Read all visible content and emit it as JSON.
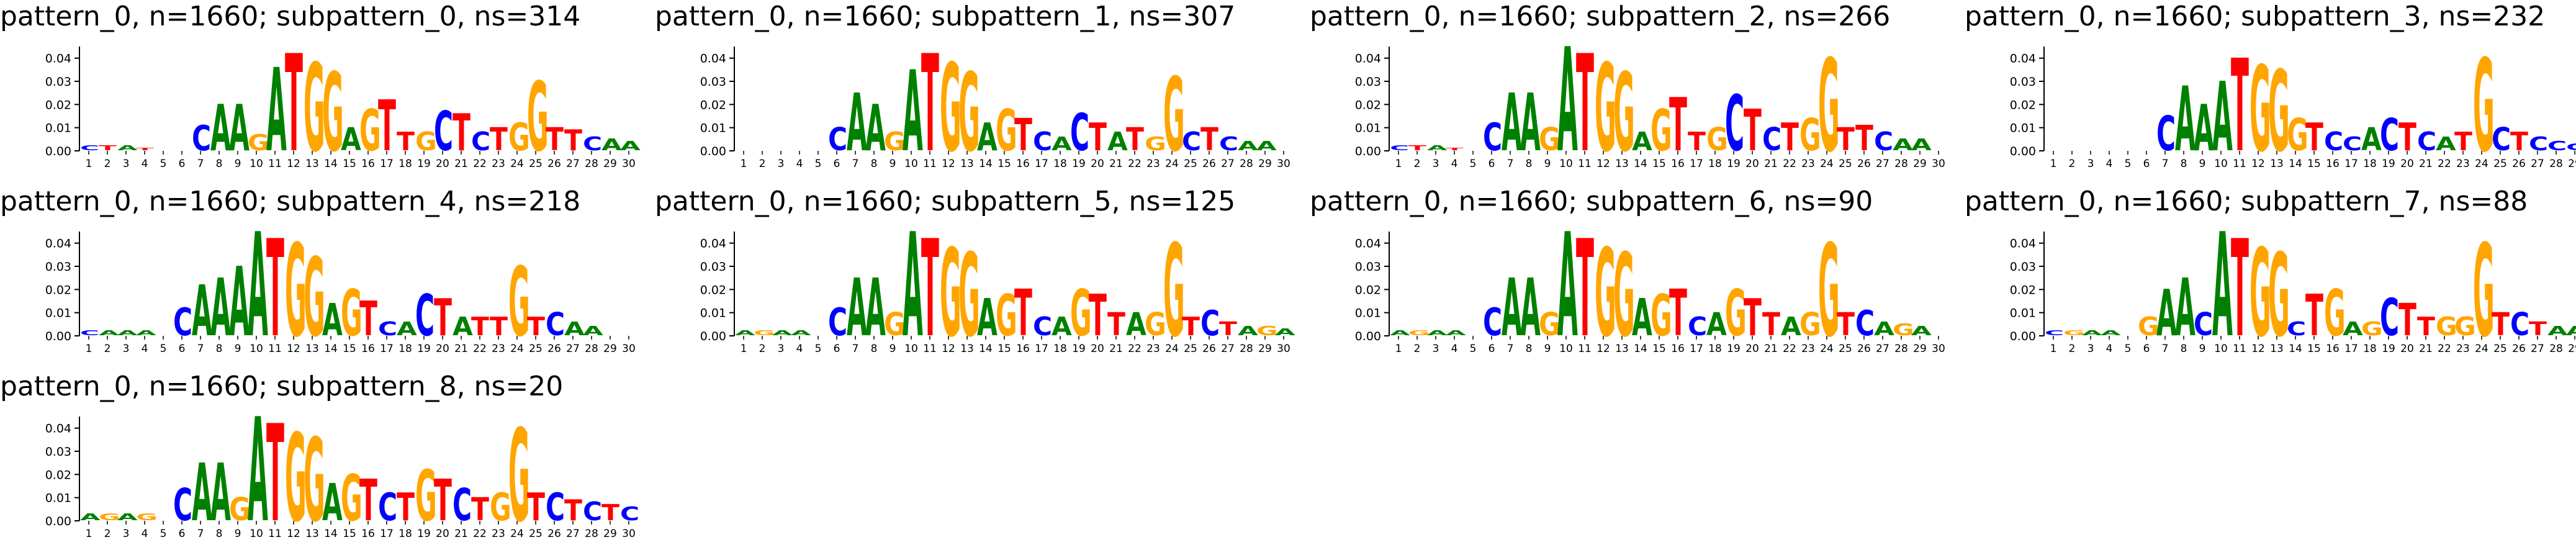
{
  "colors": {
    "A": "#008000",
    "C": "#0000ff",
    "G": "#ffa500",
    "T": "#ff0000"
  },
  "chart_data": [
    {
      "type": "sequence-logo",
      "title": "pattern_0, n=1660; subpattern_0, ns=314",
      "yticks": [
        "0.00",
        "0.01",
        "0.02",
        "0.03",
        "0.04"
      ],
      "ylim": [
        0,
        0.045
      ],
      "positions": 30,
      "xticks": [
        "1",
        "2",
        "3",
        "4",
        "5",
        "6",
        "7",
        "8",
        "9",
        "10",
        "11",
        "12",
        "13",
        "14",
        "15",
        "16",
        "17",
        "18",
        "19",
        "20",
        "21",
        "22",
        "23",
        "24",
        "25",
        "26",
        "27",
        "28",
        "29",
        "30"
      ],
      "consensus": [
        "C",
        "T",
        "A",
        "T",
        "",
        "",
        "C",
        "A",
        "A",
        "G",
        "A",
        "T",
        "G",
        "G",
        "A",
        "G",
        "T",
        "T",
        "G",
        "C",
        "T",
        "C",
        "T",
        "G",
        "G",
        "T",
        "T",
        "C",
        "A",
        "A"
      ],
      "heights": [
        0.002,
        0.002,
        0.002,
        0.001,
        0,
        0,
        0.011,
        0.02,
        0.02,
        0.007,
        0.036,
        0.042,
        0.038,
        0.034,
        0.01,
        0.018,
        0.022,
        0.008,
        0.008,
        0.017,
        0.016,
        0.008,
        0.01,
        0.012,
        0.03,
        0.01,
        0.009,
        0.006,
        0.005,
        0.004
      ]
    },
    {
      "type": "sequence-logo",
      "title": "pattern_0, n=1660; subpattern_1, ns=307",
      "yticks": [
        "0.00",
        "0.01",
        "0.02",
        "0.03",
        "0.04"
      ],
      "ylim": [
        0,
        0.045
      ],
      "positions": 30,
      "xticks": [
        "1",
        "2",
        "3",
        "4",
        "5",
        "6",
        "7",
        "8",
        "9",
        "10",
        "11",
        "12",
        "13",
        "14",
        "15",
        "16",
        "17",
        "18",
        "19",
        "20",
        "21",
        "22",
        "23",
        "24",
        "25",
        "26",
        "27",
        "28",
        "29",
        "30"
      ],
      "consensus": [
        "",
        "",
        "",
        "",
        "",
        "C",
        "A",
        "A",
        "G",
        "A",
        "T",
        "G",
        "G",
        "A",
        "G",
        "T",
        "C",
        "A",
        "C",
        "T",
        "A",
        "T",
        "G",
        "G",
        "C",
        "T",
        "C",
        "A",
        "A",
        ""
      ],
      "heights": [
        0.002,
        0.002,
        0.002,
        0.002,
        0.002,
        0.01,
        0.025,
        0.02,
        0.008,
        0.035,
        0.042,
        0.038,
        0.034,
        0.012,
        0.018,
        0.014,
        0.008,
        0.006,
        0.016,
        0.012,
        0.008,
        0.01,
        0.006,
        0.032,
        0.008,
        0.01,
        0.006,
        0.004,
        0.004,
        0.003
      ]
    },
    {
      "type": "sequence-logo",
      "title": "pattern_0, n=1660; subpattern_2, ns=266",
      "yticks": [
        "0.00",
        "0.01",
        "0.02",
        "0.03",
        "0.04"
      ],
      "ylim": [
        0,
        0.045
      ],
      "positions": 30,
      "xticks": [
        "1",
        "2",
        "3",
        "4",
        "5",
        "6",
        "7",
        "8",
        "9",
        "10",
        "11",
        "12",
        "13",
        "14",
        "15",
        "16",
        "17",
        "18",
        "19",
        "20",
        "21",
        "22",
        "23",
        "24",
        "25",
        "26",
        "27",
        "28",
        "29",
        "30"
      ],
      "consensus": [
        "C",
        "T",
        "A",
        "T",
        "",
        "C",
        "A",
        "A",
        "G",
        "A",
        "T",
        "G",
        "G",
        "A",
        "G",
        "T",
        "T",
        "G",
        "C",
        "T",
        "C",
        "T",
        "G",
        "G",
        "T",
        "T",
        "C",
        "A",
        "A",
        ""
      ],
      "heights": [
        0.002,
        0.002,
        0.002,
        0.001,
        0,
        0.012,
        0.025,
        0.025,
        0.01,
        0.045,
        0.042,
        0.038,
        0.034,
        0.008,
        0.018,
        0.023,
        0.008,
        0.01,
        0.024,
        0.018,
        0.01,
        0.012,
        0.014,
        0.04,
        0.01,
        0.011,
        0.008,
        0.005,
        0.005,
        0.004
      ]
    },
    {
      "type": "sequence-logo",
      "title": "pattern_0, n=1660; subpattern_3, ns=232",
      "yticks": [
        "0.00",
        "0.01",
        "0.02",
        "0.03",
        "0.04"
      ],
      "ylim": [
        0,
        0.045
      ],
      "positions": 30,
      "xticks": [
        "1",
        "2",
        "3",
        "4",
        "5",
        "6",
        "7",
        "8",
        "9",
        "10",
        "11",
        "12",
        "13",
        "14",
        "15",
        "16",
        "17",
        "18",
        "19",
        "20",
        "21",
        "22",
        "23",
        "24",
        "25",
        "26",
        "27",
        "28",
        "29",
        "30"
      ],
      "consensus": [
        "",
        "",
        "",
        "",
        "",
        "",
        "C",
        "A",
        "A",
        "A",
        "T",
        "G",
        "G",
        "G",
        "T",
        "C",
        "C",
        "A",
        "C",
        "T",
        "C",
        "A",
        "T",
        "G",
        "C",
        "T",
        "C",
        "C",
        "C",
        ""
      ],
      "heights": [
        0.002,
        0.002,
        0.002,
        0.002,
        0.002,
        0.006,
        0.015,
        0.028,
        0.02,
        0.03,
        0.04,
        0.037,
        0.035,
        0.014,
        0.012,
        0.008,
        0.006,
        0.01,
        0.014,
        0.012,
        0.008,
        0.006,
        0.008,
        0.04,
        0.01,
        0.008,
        0.006,
        0.004,
        0.003,
        0.003
      ]
    },
    {
      "type": "sequence-logo",
      "title": "pattern_0, n=1660; subpattern_4, ns=218",
      "yticks": [
        "0.00",
        "0.01",
        "0.02",
        "0.03",
        "0.04"
      ],
      "ylim": [
        0,
        0.045
      ],
      "positions": 30,
      "xticks": [
        "1",
        "2",
        "3",
        "4",
        "5",
        "6",
        "7",
        "8",
        "9",
        "10",
        "11",
        "12",
        "13",
        "14",
        "15",
        "16",
        "17",
        "18",
        "19",
        "20",
        "21",
        "22",
        "23",
        "24",
        "25",
        "26",
        "27",
        "28",
        "29",
        "30"
      ],
      "consensus": [
        "C",
        "A",
        "A",
        "A",
        "",
        "C",
        "A",
        "A",
        "A",
        "A",
        "T",
        "G",
        "G",
        "A",
        "G",
        "T",
        "C",
        "A",
        "C",
        "T",
        "A",
        "T",
        "T",
        "G",
        "T",
        "C",
        "A",
        "A",
        "",
        ""
      ],
      "heights": [
        0.002,
        0.002,
        0.002,
        0.002,
        0,
        0.012,
        0.022,
        0.025,
        0.03,
        0.045,
        0.042,
        0.04,
        0.034,
        0.014,
        0.02,
        0.015,
        0.006,
        0.006,
        0.018,
        0.016,
        0.008,
        0.008,
        0.008,
        0.03,
        0.008,
        0.01,
        0.006,
        0.004,
        0.003,
        0.002
      ]
    },
    {
      "type": "sequence-logo",
      "title": "pattern_0, n=1660; subpattern_5, ns=125",
      "yticks": [
        "0.00",
        "0.01",
        "0.02",
        "0.03",
        "0.04"
      ],
      "ylim": [
        0,
        0.045
      ],
      "positions": 30,
      "xticks": [
        "1",
        "2",
        "3",
        "4",
        "5",
        "6",
        "7",
        "8",
        "9",
        "10",
        "11",
        "12",
        "13",
        "14",
        "15",
        "16",
        "17",
        "18",
        "19",
        "20",
        "21",
        "22",
        "23",
        "24",
        "25",
        "26",
        "27",
        "28",
        "29",
        "30"
      ],
      "consensus": [
        "A",
        "G",
        "A",
        "A",
        "",
        "C",
        "A",
        "A",
        "G",
        "A",
        "T",
        "G",
        "G",
        "A",
        "G",
        "T",
        "C",
        "A",
        "G",
        "T",
        "T",
        "A",
        "G",
        "G",
        "T",
        "C",
        "T",
        "A",
        "G",
        "A"
      ],
      "heights": [
        0.002,
        0.002,
        0.002,
        0.002,
        0,
        0.012,
        0.025,
        0.025,
        0.01,
        0.045,
        0.042,
        0.038,
        0.036,
        0.016,
        0.018,
        0.02,
        0.008,
        0.008,
        0.02,
        0.018,
        0.01,
        0.01,
        0.01,
        0.04,
        0.008,
        0.011,
        0.006,
        0.004,
        0.004,
        0.003
      ]
    },
    {
      "type": "sequence-logo",
      "title": "pattern_0, n=1660; subpattern_6, ns=90",
      "yticks": [
        "0.00",
        "0.01",
        "0.02",
        "0.03",
        "0.04"
      ],
      "ylim": [
        0,
        0.045
      ],
      "positions": 30,
      "xticks": [
        "1",
        "2",
        "3",
        "4",
        "5",
        "6",
        "7",
        "8",
        "9",
        "10",
        "11",
        "12",
        "13",
        "14",
        "15",
        "16",
        "17",
        "18",
        "19",
        "20",
        "21",
        "22",
        "23",
        "24",
        "25",
        "26",
        "27",
        "28",
        "29",
        "30"
      ],
      "consensus": [
        "A",
        "G",
        "A",
        "A",
        "",
        "C",
        "A",
        "A",
        "G",
        "A",
        "T",
        "G",
        "G",
        "A",
        "G",
        "T",
        "C",
        "A",
        "G",
        "T",
        "T",
        "A",
        "G",
        "G",
        "T",
        "C",
        "A",
        "G",
        "A",
        ""
      ],
      "heights": [
        0.002,
        0.002,
        0.002,
        0.002,
        0,
        0.012,
        0.025,
        0.025,
        0.01,
        0.045,
        0.042,
        0.038,
        0.036,
        0.016,
        0.018,
        0.02,
        0.008,
        0.01,
        0.02,
        0.016,
        0.01,
        0.008,
        0.01,
        0.04,
        0.01,
        0.011,
        0.006,
        0.005,
        0.004,
        0.003
      ]
    },
    {
      "type": "sequence-logo",
      "title": "pattern_0, n=1660; subpattern_7, ns=88",
      "yticks": [
        "0.00",
        "0.01",
        "0.02",
        "0.03",
        "0.04"
      ],
      "ylim": [
        0,
        0.045
      ],
      "positions": 30,
      "xticks": [
        "1",
        "2",
        "3",
        "4",
        "5",
        "6",
        "7",
        "8",
        "9",
        "10",
        "11",
        "12",
        "13",
        "14",
        "15",
        "16",
        "17",
        "18",
        "19",
        "20",
        "21",
        "22",
        "23",
        "24",
        "25",
        "26",
        "27",
        "28",
        "29",
        "30"
      ],
      "consensus": [
        "C",
        "G",
        "A",
        "A",
        "",
        "G",
        "A",
        "A",
        "C",
        "A",
        "T",
        "G",
        "G",
        "C",
        "T",
        "G",
        "A",
        "G",
        "C",
        "T",
        "T",
        "G",
        "G",
        "G",
        "T",
        "C",
        "T",
        "A",
        "A",
        "G"
      ],
      "heights": [
        0.002,
        0.002,
        0.002,
        0.002,
        0,
        0.008,
        0.02,
        0.025,
        0.01,
        0.045,
        0.042,
        0.038,
        0.036,
        0.006,
        0.018,
        0.02,
        0.006,
        0.006,
        0.016,
        0.014,
        0.008,
        0.008,
        0.008,
        0.04,
        0.01,
        0.01,
        0.006,
        0.004,
        0.004,
        0.003
      ]
    },
    {
      "type": "sequence-logo",
      "title": "pattern_0, n=1660; subpattern_8, ns=20",
      "yticks": [
        "0.00",
        "0.01",
        "0.02",
        "0.03",
        "0.04"
      ],
      "ylim": [
        0,
        0.045
      ],
      "positions": 30,
      "xticks": [
        "1",
        "2",
        "3",
        "4",
        "5",
        "6",
        "7",
        "8",
        "9",
        "10",
        "11",
        "12",
        "13",
        "14",
        "15",
        "16",
        "17",
        "18",
        "19",
        "20",
        "21",
        "22",
        "23",
        "24",
        "25",
        "26",
        "27",
        "28",
        "29",
        "30"
      ],
      "consensus": [
        "A",
        "G",
        "A",
        "G",
        "",
        "C",
        "A",
        "A",
        "G",
        "A",
        "T",
        "G",
        "G",
        "A",
        "G",
        "T",
        "C",
        "T",
        "G",
        "T",
        "C",
        "T",
        "G",
        "G",
        "T",
        "C",
        "T",
        "C",
        "T",
        "C"
      ],
      "heights": [
        0.003,
        0.003,
        0.003,
        0.003,
        0,
        0.014,
        0.025,
        0.025,
        0.01,
        0.045,
        0.042,
        0.038,
        0.036,
        0.016,
        0.02,
        0.018,
        0.012,
        0.012,
        0.022,
        0.018,
        0.014,
        0.01,
        0.012,
        0.04,
        0.012,
        0.012,
        0.009,
        0.008,
        0.007,
        0.006
      ]
    }
  ]
}
